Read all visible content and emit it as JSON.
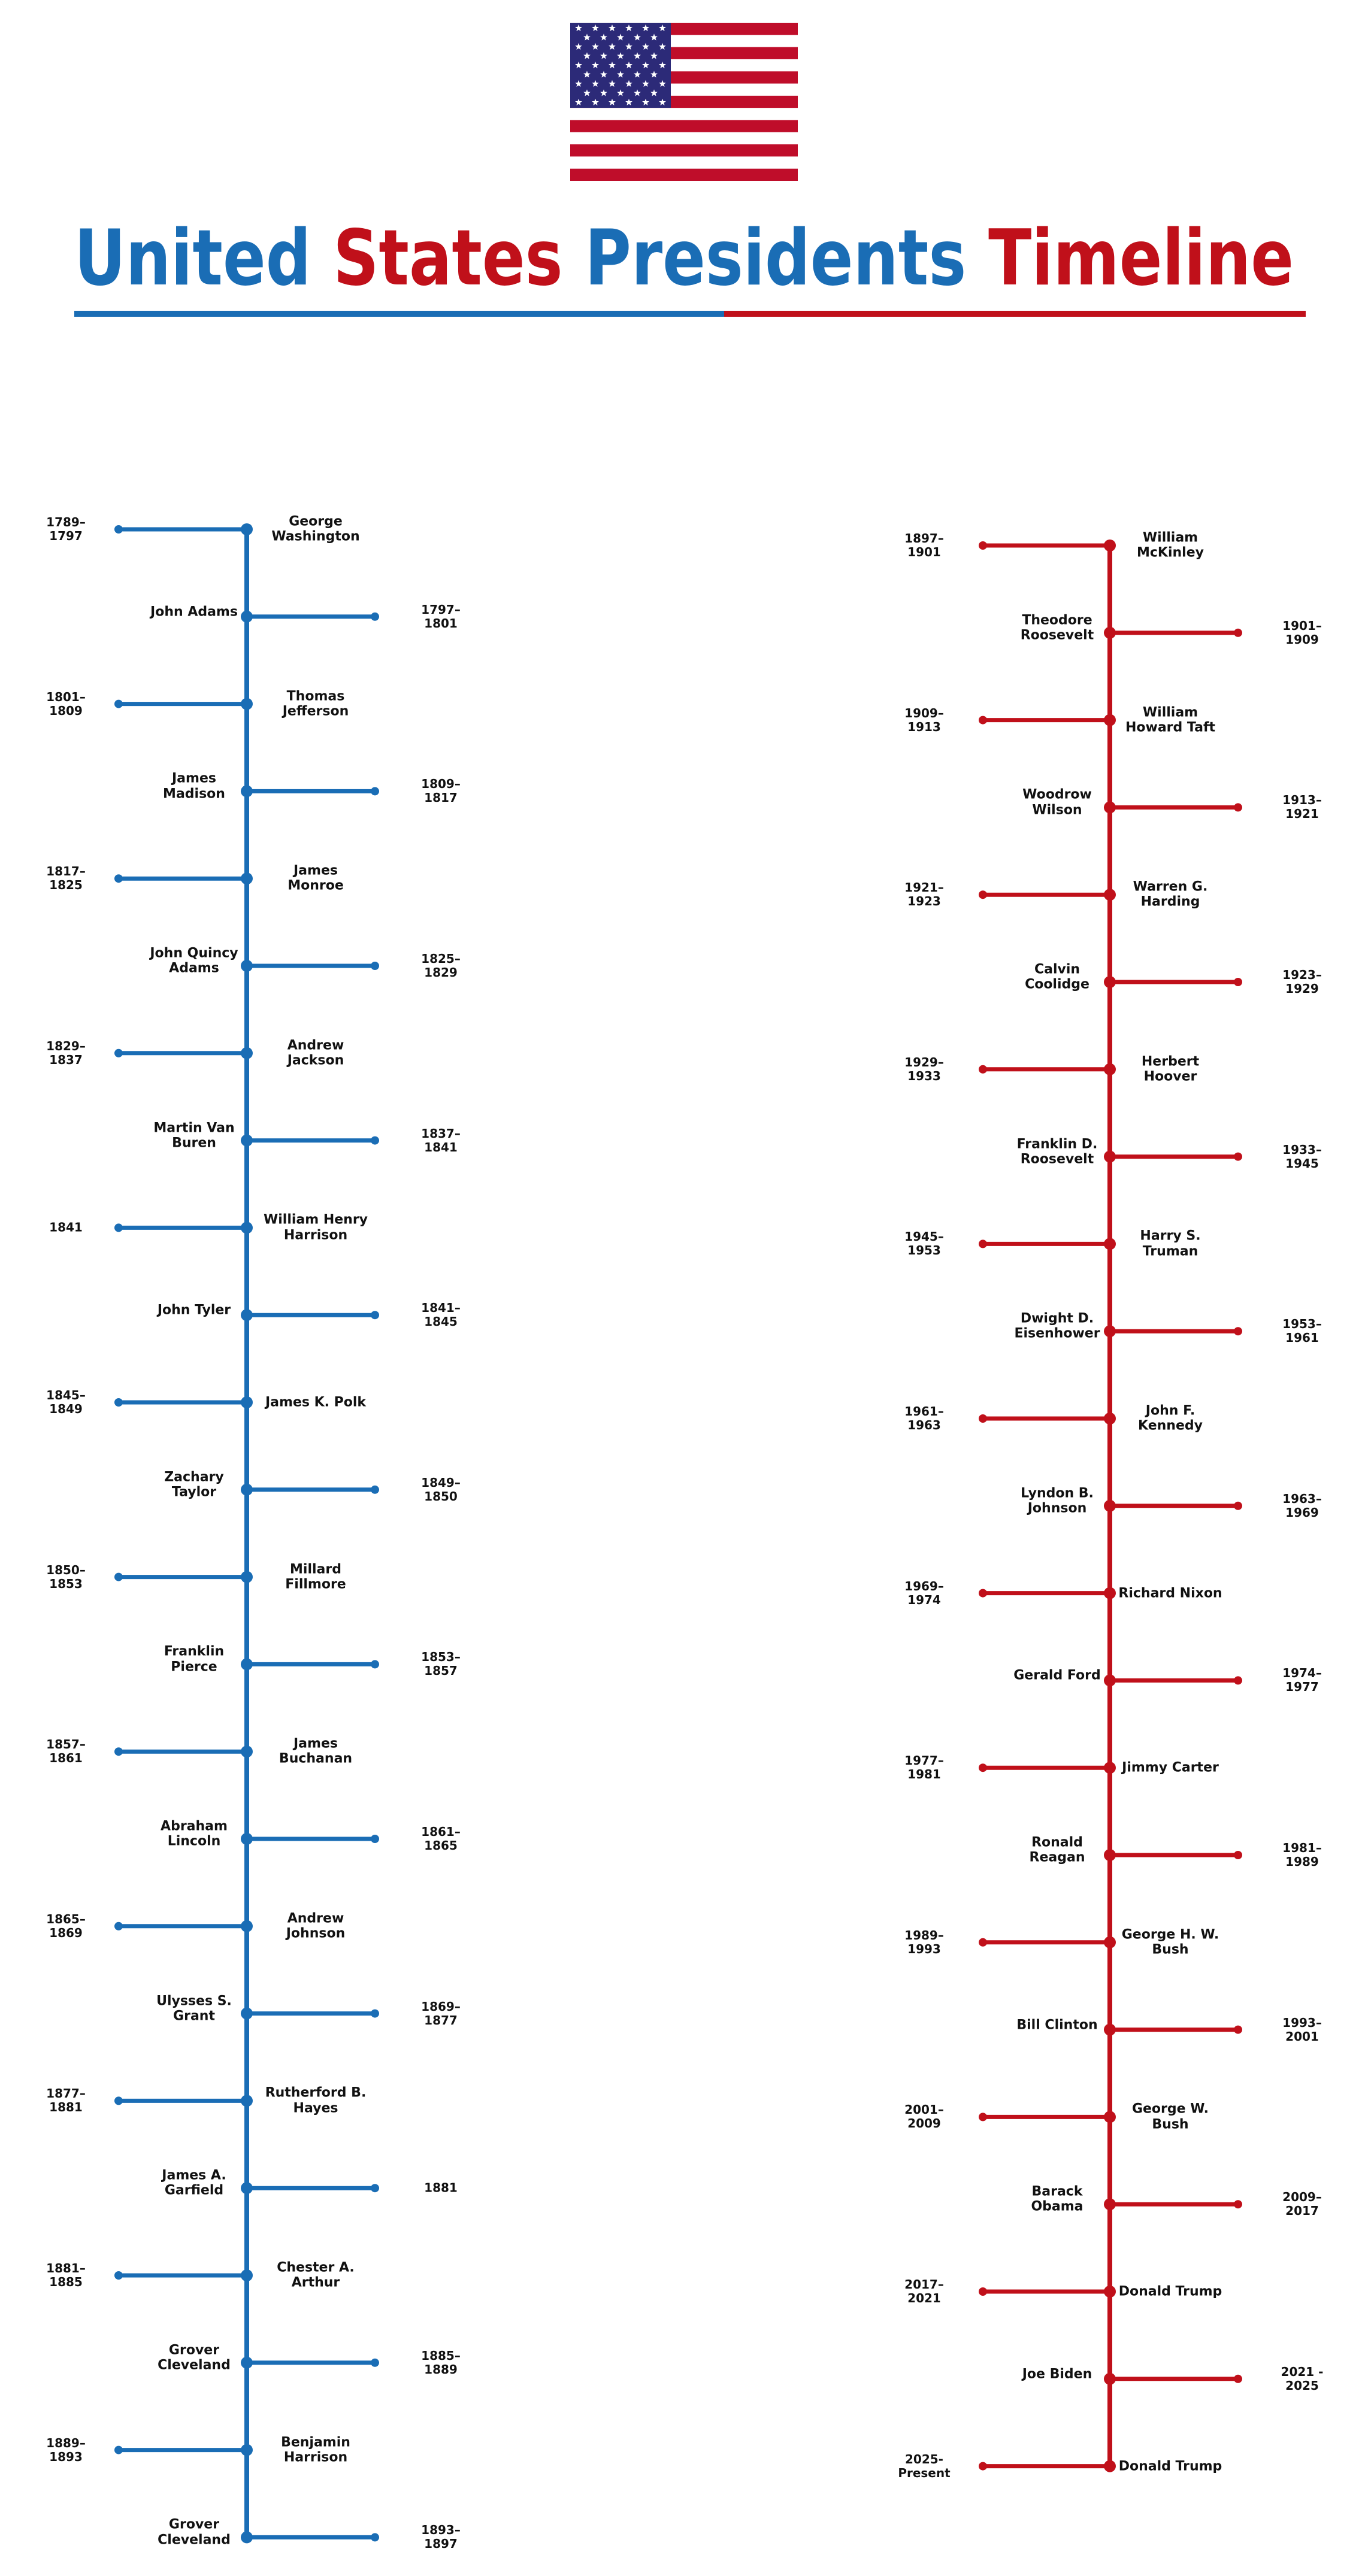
{
  "title_words": [
    "United",
    "States",
    "Presidents",
    "Timeline"
  ],
  "title_colors": [
    "#1a6db5",
    "#c0101a",
    "#1a6db5",
    "#c0101a"
  ],
  "timelines": [
    {
      "color": "#1a6db5",
      "entries": [
        {
          "name": "George Washington",
          "years": "1789–1797"
        },
        {
          "name": "John Adams",
          "years": "1797–1801"
        },
        {
          "name": "Thomas Jefferson",
          "years": "1801–1809"
        },
        {
          "name": "James Madison",
          "years": "1809–1817"
        },
        {
          "name": "James Monroe",
          "years": "1817–1825"
        },
        {
          "name": "John Quincy Adams",
          "years": "1825–1829"
        },
        {
          "name": "Andrew Jackson",
          "years": "1829–1837"
        },
        {
          "name": "Martin Van Buren",
          "years": "1837–1841"
        },
        {
          "name": "William Henry Harrison",
          "years": "1841"
        },
        {
          "name": "John Tyler",
          "years": "1841–1845"
        },
        {
          "name": "James K. Polk",
          "years": "1845–1849"
        },
        {
          "name": "Zachary Taylor",
          "years": "1849–1850"
        },
        {
          "name": "Millard Fillmore",
          "years": "1850–1853"
        },
        {
          "name": "Franklin Pierce",
          "years": "1853–1857"
        },
        {
          "name": "James Buchanan",
          "years": "1857–1861"
        },
        {
          "name": "Abraham Lincoln",
          "years": "1861–1865"
        },
        {
          "name": "Andrew Johnson",
          "years": "1865–1869"
        },
        {
          "name": "Ulysses S. Grant",
          "years": "1869–1877"
        },
        {
          "name": "Rutherford B. Hayes",
          "years": "1877–1881"
        },
        {
          "name": "James A. Garfield",
          "years": "1881"
        },
        {
          "name": "Chester A. Arthur",
          "years": "1881–1885"
        },
        {
          "name": "Grover Cleveland",
          "years": "1885–1889"
        },
        {
          "name": "Benjamin Harrison",
          "years": "1889–1893"
        },
        {
          "name": "Grover Cleveland",
          "years": "1893–1897"
        }
      ]
    },
    {
      "color": "#c0101a",
      "entries": [
        {
          "name": "William McKinley",
          "years": "1897–1901"
        },
        {
          "name": "Theodore Roosevelt",
          "years": "1901–1909"
        },
        {
          "name": "William Howard Taft",
          "years": "1909–1913"
        },
        {
          "name": "Woodrow Wilson",
          "years": "1913–1921"
        },
        {
          "name": "Warren G. Harding",
          "years": "1921–1923"
        },
        {
          "name": "Calvin Coolidge",
          "years": "1923–1929"
        },
        {
          "name": "Herbert Hoover",
          "years": "1929–1933"
        },
        {
          "name": "Franklin D. Roosevelt",
          "years": "1933–1945"
        },
        {
          "name": "Harry S. Truman",
          "years": "1945–1953"
        },
        {
          "name": "Dwight D. Eisenhower",
          "years": "1953–1961"
        },
        {
          "name": "John F. Kennedy",
          "years": "1961–1963"
        },
        {
          "name": "Lyndon B. Johnson",
          "years": "1963–1969"
        },
        {
          "name": "Richard Nixon",
          "years": "1969–1974"
        },
        {
          "name": "Gerald Ford",
          "years": "1974–1977"
        },
        {
          "name": "Jimmy Carter",
          "years": "1977–1981"
        },
        {
          "name": "Ronald Reagan",
          "years": "1981–1989"
        },
        {
          "name": "George H. W. Bush",
          "years": "1989–1993"
        },
        {
          "name": "Bill Clinton",
          "years": "1993–2001"
        },
        {
          "name": "George W. Bush",
          "years": "2001–2009"
        },
        {
          "name": "Barack Obama",
          "years": "2009–2017"
        },
        {
          "name": "Donald Trump",
          "years": "2017–2021"
        },
        {
          "name": "Joe Biden",
          "years": "2021 - 2025"
        },
        {
          "name": "Donald Trump",
          "years": "2025- Present"
        }
      ]
    }
  ]
}
